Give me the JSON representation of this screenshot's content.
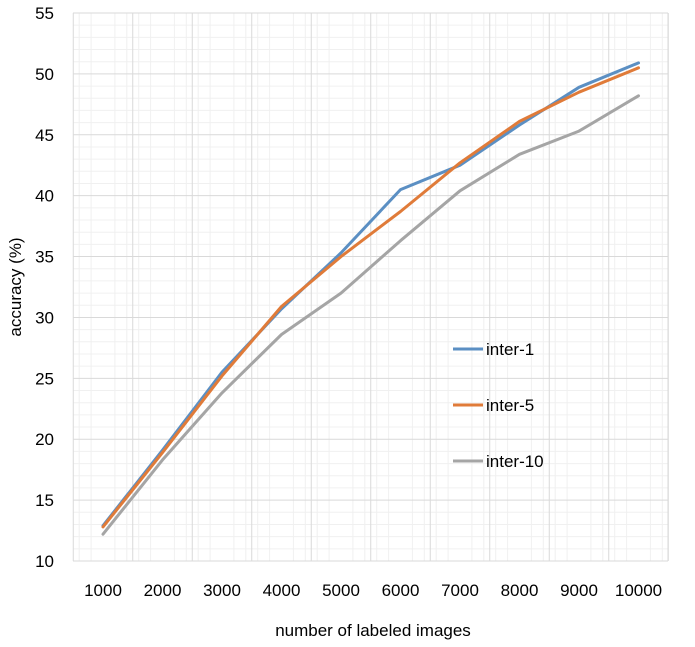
{
  "chart_data": {
    "type": "line",
    "xlabel": "number of labeled images",
    "ylabel": "accuracy (%)",
    "x": [
      1000,
      2000,
      3000,
      4000,
      5000,
      6000,
      7000,
      8000,
      9000,
      10000
    ],
    "ylim": [
      10,
      55
    ],
    "yticks": [
      10,
      15,
      20,
      25,
      30,
      35,
      40,
      45,
      50,
      55
    ],
    "grid": true,
    "minor_grid": true,
    "legend_position": "right",
    "series": [
      {
        "name": "inter-1",
        "color": "#5b8fc3",
        "values": [
          12.9,
          19.1,
          25.5,
          30.7,
          35.3,
          40.5,
          42.5,
          45.8,
          48.9,
          50.9
        ]
      },
      {
        "name": "inter-5",
        "color": "#e07b39",
        "values": [
          12.8,
          18.9,
          25.2,
          30.9,
          35.0,
          38.7,
          42.7,
          46.1,
          48.5,
          50.5
        ]
      },
      {
        "name": "inter-10",
        "color": "#a5a5a5",
        "values": [
          12.2,
          18.3,
          23.8,
          28.6,
          32.0,
          36.3,
          40.4,
          43.4,
          45.3,
          48.2
        ]
      }
    ]
  }
}
